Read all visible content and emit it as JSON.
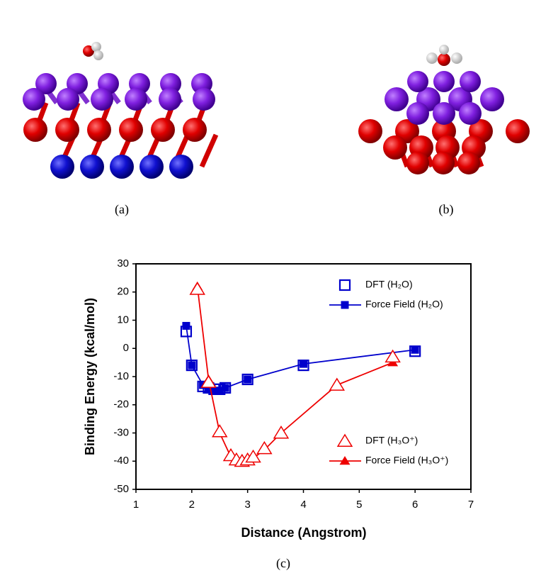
{
  "panel_labels": [
    "(a)",
    "(b)",
    "(c)"
  ],
  "chart_data": {
    "type": "line",
    "xlabel": "Distance (Angstrom)",
    "ylabel": "Binding Energy (kcal/mol)",
    "xlim": [
      1,
      7
    ],
    "xticks": [
      1,
      2,
      3,
      4,
      5,
      6,
      7
    ],
    "ylim": [
      -50,
      30
    ],
    "yticks": [
      -50,
      -40,
      -30,
      -20,
      -10,
      0,
      10,
      20,
      30
    ],
    "series": [
      {
        "name": "DFT (H₂O)",
        "color": "#0000cc",
        "marker": "square-open",
        "line": false,
        "x": [
          1.9,
          2.0,
          2.2,
          2.3,
          2.4,
          2.5,
          2.6,
          3.0,
          4.0,
          6.0
        ],
        "values": [
          6,
          -6,
          -13.5,
          -14,
          -14.5,
          -14.5,
          -14,
          -11,
          -6,
          -1
        ]
      },
      {
        "name": "Force Field (H₂O)",
        "color": "#0000cc",
        "marker": "square",
        "line": true,
        "x": [
          1.9,
          2.0,
          2.2,
          2.3,
          2.4,
          2.5,
          2.6,
          3.0,
          4.0,
          6.0
        ],
        "values": [
          8,
          -6,
          -13,
          -14.5,
          -15,
          -15,
          -14,
          -11,
          -5.5,
          -0.5
        ]
      },
      {
        "name": "DFT (H₃O⁺)",
        "color": "#ee0000",
        "marker": "triangle-open",
        "line": false,
        "x": [
          2.1,
          2.3,
          2.5,
          2.7,
          2.8,
          2.9,
          3.0,
          3.1,
          3.3,
          3.6,
          4.6,
          5.6
        ],
        "values": [
          21,
          -12,
          -29.5,
          -38,
          -39.5,
          -40,
          -39.5,
          -38.5,
          -35.5,
          -30,
          -13,
          -3
        ]
      },
      {
        "name": "Force Field (H₃O⁺)",
        "color": "#ee0000",
        "marker": "triangle",
        "line": true,
        "x": [
          2.1,
          2.3,
          2.5,
          2.7,
          2.8,
          2.9,
          3.0,
          3.1,
          3.3,
          3.6,
          4.6,
          5.6
        ],
        "values": [
          22,
          -11,
          -30,
          -38.5,
          -40,
          -40.5,
          -40,
          -39,
          -36,
          -30,
          -13,
          -5
        ]
      }
    ]
  }
}
